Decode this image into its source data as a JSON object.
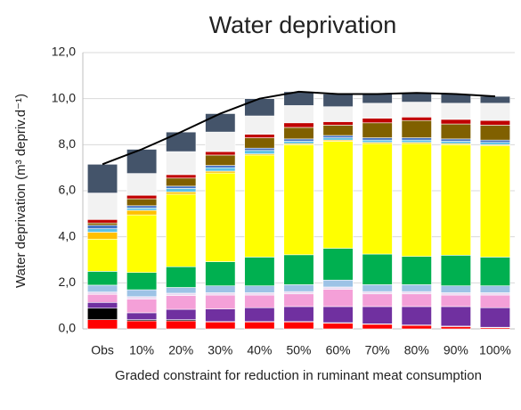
{
  "chart_data": {
    "type": "stacked_bar",
    "title": "Water deprivation",
    "ylabel": "Water deprivation (m³ depriv.d⁻¹)",
    "xlabel": "Graded constraint for reduction in ruminant meat consumption",
    "categories": [
      "Obs",
      "10%",
      "20%",
      "30%",
      "40%",
      "50%",
      "60%",
      "70%",
      "80%",
      "90%",
      "100%"
    ],
    "ylim": [
      0,
      12
    ],
    "yticks": [
      {
        "value": 0,
        "label": "0,0"
      },
      {
        "value": 2,
        "label": "2,0"
      },
      {
        "value": 4,
        "label": "4,0"
      },
      {
        "value": 6,
        "label": "6,0"
      },
      {
        "value": 8,
        "label": "8,0"
      },
      {
        "value": 10,
        "label": "10,0"
      },
      {
        "value": 12,
        "label": "12,0"
      }
    ],
    "grid": true,
    "series": [
      {
        "color": "#ff0000",
        "values": [
          0.4,
          0.35,
          0.35,
          0.3,
          0.3,
          0.3,
          0.25,
          0.2,
          0.15,
          0.1,
          0.05
        ]
      },
      {
        "color": "#000000",
        "values": [
          0.5,
          0.05,
          0.05,
          0.02,
          0.02,
          0.02,
          0.02,
          0.02,
          0.02,
          0.02,
          0.02
        ]
      },
      {
        "color": "#7030a0",
        "values": [
          0.25,
          0.3,
          0.45,
          0.55,
          0.6,
          0.65,
          0.7,
          0.75,
          0.8,
          0.85,
          0.85
        ]
      },
      {
        "color": "#f4a0d8",
        "values": [
          0.35,
          0.6,
          0.6,
          0.6,
          0.55,
          0.55,
          0.75,
          0.55,
          0.55,
          0.5,
          0.55
        ]
      },
      {
        "color": "#ead8f2",
        "values": [
          0.1,
          0.1,
          0.1,
          0.1,
          0.1,
          0.1,
          0.1,
          0.1,
          0.1,
          0.1,
          0.1
        ]
      },
      {
        "color": "#9dc3e6",
        "values": [
          0.3,
          0.3,
          0.25,
          0.3,
          0.3,
          0.3,
          0.3,
          0.3,
          0.3,
          0.3,
          0.3
        ]
      },
      {
        "color": "#00b050",
        "values": [
          0.6,
          0.75,
          0.9,
          1.05,
          1.25,
          1.3,
          1.38,
          1.33,
          1.23,
          1.33,
          1.25
        ]
      },
      {
        "color": "#ffff00",
        "values": [
          1.4,
          2.5,
          3.15,
          3.85,
          4.43,
          4.78,
          4.65,
          4.8,
          4.9,
          4.8,
          4.83
        ]
      },
      {
        "color": "#ffc000",
        "values": [
          0.3,
          0.2,
          0.1,
          0.08,
          0.05,
          0.05,
          0.05,
          0.05,
          0.05,
          0.05,
          0.05
        ]
      },
      {
        "color": "#5bc0e6",
        "values": [
          0.15,
          0.1,
          0.15,
          0.15,
          0.15,
          0.1,
          0.1,
          0.1,
          0.1,
          0.1,
          0.1
        ]
      },
      {
        "color": "#4472c4",
        "values": [
          0.15,
          0.1,
          0.1,
          0.1,
          0.1,
          0.1,
          0.1,
          0.1,
          0.1,
          0.1,
          0.1
        ]
      },
      {
        "color": "#806000",
        "values": [
          0.1,
          0.3,
          0.35,
          0.45,
          0.45,
          0.5,
          0.45,
          0.65,
          0.75,
          0.65,
          0.65
        ]
      },
      {
        "color": "#c00000",
        "values": [
          0.15,
          0.15,
          0.15,
          0.15,
          0.15,
          0.2,
          0.15,
          0.2,
          0.15,
          0.2,
          0.2
        ]
      },
      {
        "color": "#f2f2f2",
        "values": [
          1.15,
          0.95,
          1.0,
          0.85,
          0.8,
          0.75,
          0.65,
          0.65,
          0.65,
          0.7,
          0.75
        ]
      },
      {
        "color": "#44546a",
        "values": [
          1.25,
          1.05,
          0.85,
          0.8,
          0.75,
          0.6,
          0.55,
          0.4,
          0.4,
          0.4,
          0.3
        ]
      }
    ],
    "line": {
      "color": "#000000",
      "values": [
        7.15,
        7.8,
        8.55,
        9.35,
        10.0,
        10.3,
        10.2,
        10.2,
        10.25,
        10.2,
        10.1
      ]
    }
  }
}
